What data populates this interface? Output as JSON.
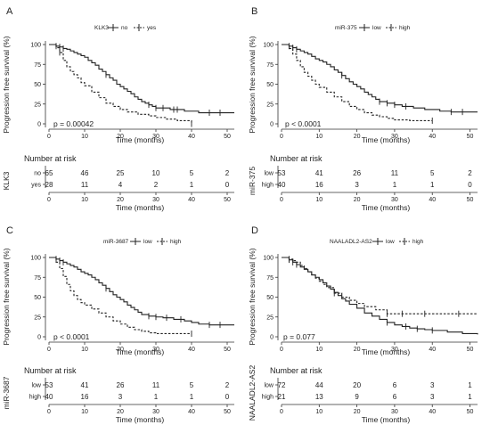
{
  "panels": [
    {
      "label": "A",
      "legend_title": "KLK3",
      "strata": [
        "no",
        "yes"
      ],
      "ylabel": "Progression free survival (%)",
      "xlabel": "Time (months)",
      "pvalue": "p = 0.00042",
      "risk_title": "Number at risk",
      "risk_ylabel": "KLK3",
      "risk_xlabel": "Time (months)"
    },
    {
      "label": "B",
      "legend_title": "miR-375",
      "strata": [
        "low",
        "high"
      ],
      "ylabel": "Progression free survival (%)",
      "xlabel": "Time (months)",
      "pvalue": "p < 0.0001",
      "risk_title": "Number at risk",
      "risk_ylabel": "miR-375",
      "risk_xlabel": "Time (months)"
    },
    {
      "label": "C",
      "legend_title": "miR-3687",
      "strata": [
        "low",
        "high"
      ],
      "ylabel": "Progression free survival (%)",
      "xlabel": "Time (months)",
      "pvalue": "p < 0.0001",
      "risk_title": "Number at risk",
      "risk_ylabel": "miR-3687",
      "risk_xlabel": "Time (months)"
    },
    {
      "label": "D",
      "legend_title": "NAALADL2-AS2",
      "strata": [
        "low",
        "high"
      ],
      "ylabel": "Progression free survival (%)",
      "xlabel": "Time (months)",
      "pvalue": "p = 0.077",
      "risk_title": "Number at risk",
      "risk_ylabel": "NAALADL2-AS2",
      "risk_xlabel": "Time (months)"
    }
  ],
  "chart_data": [
    {
      "type": "line",
      "subtype": "kaplan-meier",
      "title": "A",
      "legend_title": "KLK3",
      "xlabel": "Time (months)",
      "ylabel": "Progression free survival (%)",
      "xlim": [
        0,
        52
      ],
      "ylim": [
        0,
        100
      ],
      "xticks": [
        0,
        10,
        20,
        30,
        40,
        50
      ],
      "yticks": [
        0,
        25,
        50,
        75,
        100
      ],
      "pvalue": "p = 0.00042",
      "series": [
        {
          "name": "no",
          "style": "solid",
          "x": [
            0,
            2,
            3,
            4,
            5,
            6,
            7,
            8,
            9,
            10,
            11,
            12,
            13,
            14,
            15,
            16,
            17,
            18,
            19,
            20,
            21,
            22,
            23,
            24,
            25,
            26,
            27,
            28,
            29,
            30,
            32,
            34,
            36,
            38,
            40,
            42,
            45,
            52
          ],
          "y": [
            100,
            98,
            97,
            95,
            94,
            92,
            90,
            88,
            86,
            84,
            80,
            77,
            74,
            69,
            66,
            62,
            58,
            55,
            50,
            47,
            44,
            41,
            38,
            34,
            31,
            28,
            26,
            24,
            22,
            20,
            20,
            18,
            18,
            16,
            16,
            14,
            14,
            14
          ],
          "censor_x": [
            2,
            3,
            4,
            16,
            28,
            30,
            32,
            35,
            36,
            45,
            48
          ]
        },
        {
          "name": "yes",
          "style": "dashed",
          "x": [
            0,
            2,
            3,
            4,
            5,
            6,
            7,
            8,
            9,
            10,
            12,
            14,
            16,
            18,
            20,
            22,
            25,
            28,
            30,
            33,
            36,
            40
          ],
          "y": [
            100,
            96,
            90,
            80,
            72,
            66,
            62,
            58,
            52,
            48,
            40,
            33,
            26,
            22,
            18,
            15,
            12,
            10,
            8,
            6,
            4,
            0
          ],
          "censor_x": [
            3,
            40
          ]
        }
      ],
      "risk_table": {
        "title": "Number at risk",
        "times": [
          0,
          10,
          20,
          30,
          40,
          50
        ],
        "rows": [
          {
            "label": "no",
            "values": [
              65,
              46,
              25,
              10,
              5,
              2
            ]
          },
          {
            "label": "yes",
            "values": [
              28,
              11,
              4,
              2,
              1,
              0
            ]
          }
        ]
      }
    },
    {
      "type": "line",
      "subtype": "kaplan-meier",
      "title": "B",
      "legend_title": "miR-375",
      "xlabel": "Time (months)",
      "ylabel": "Progression free survival (%)",
      "xlim": [
        0,
        52
      ],
      "ylim": [
        0,
        100
      ],
      "xticks": [
        0,
        10,
        20,
        30,
        40,
        50
      ],
      "yticks": [
        0,
        25,
        50,
        75,
        100
      ],
      "pvalue": "p < 0.0001",
      "series": [
        {
          "name": "low",
          "style": "solid",
          "x": [
            0,
            2,
            3,
            4,
            5,
            6,
            7,
            8,
            9,
            10,
            11,
            12,
            13,
            14,
            15,
            16,
            17,
            18,
            19,
            20,
            21,
            22,
            23,
            24,
            25,
            26,
            28,
            30,
            32,
            35,
            38,
            40,
            42,
            45,
            52
          ],
          "y": [
            100,
            98,
            96,
            94,
            92,
            90,
            88,
            85,
            82,
            80,
            78,
            75,
            72,
            68,
            65,
            61,
            57,
            53,
            50,
            47,
            44,
            40,
            37,
            34,
            31,
            28,
            26,
            24,
            22,
            20,
            18,
            18,
            16,
            15,
            15
          ],
          "censor_x": [
            2,
            3,
            4,
            16,
            26,
            28,
            30,
            33,
            45,
            48
          ]
        },
        {
          "name": "high",
          "style": "dashed",
          "x": [
            0,
            2,
            3,
            4,
            5,
            6,
            7,
            8,
            9,
            10,
            12,
            14,
            16,
            18,
            20,
            22,
            24,
            26,
            28,
            30,
            34,
            40
          ],
          "y": [
            100,
            95,
            88,
            80,
            72,
            65,
            60,
            55,
            50,
            46,
            40,
            34,
            28,
            22,
            18,
            14,
            11,
            9,
            7,
            5,
            4,
            4
          ],
          "censor_x": [
            40
          ]
        }
      ],
      "risk_table": {
        "title": "Number at risk",
        "times": [
          0,
          10,
          20,
          30,
          40,
          50
        ],
        "rows": [
          {
            "label": "low",
            "values": [
              53,
              41,
              26,
              11,
              5,
              2
            ]
          },
          {
            "label": "high",
            "values": [
              40,
              16,
              3,
              1,
              1,
              0
            ]
          }
        ]
      }
    },
    {
      "type": "line",
      "subtype": "kaplan-meier",
      "title": "C",
      "legend_title": "miR-3687",
      "xlabel": "Time (months)",
      "ylabel": "Progression free survival (%)",
      "xlim": [
        0,
        52
      ],
      "ylim": [
        0,
        100
      ],
      "xticks": [
        0,
        10,
        20,
        30,
        40,
        50
      ],
      "yticks": [
        0,
        25,
        50,
        75,
        100
      ],
      "pvalue": "p < 0.0001",
      "series": [
        {
          "name": "low",
          "style": "solid",
          "x": [
            0,
            2,
            3,
            4,
            5,
            6,
            7,
            8,
            9,
            10,
            11,
            12,
            13,
            14,
            15,
            16,
            17,
            18,
            19,
            20,
            21,
            22,
            23,
            24,
            25,
            26,
            28,
            30,
            32,
            35,
            38,
            40,
            42,
            45,
            52
          ],
          "y": [
            100,
            98,
            96,
            94,
            92,
            90,
            88,
            85,
            82,
            80,
            78,
            75,
            72,
            68,
            65,
            61,
            57,
            53,
            50,
            47,
            44,
            40,
            37,
            34,
            31,
            28,
            26,
            25,
            24,
            22,
            20,
            18,
            16,
            15,
            15
          ],
          "censor_x": [
            2,
            3,
            4,
            16,
            28,
            30,
            33,
            37,
            45,
            48
          ]
        },
        {
          "name": "high",
          "style": "dashed",
          "x": [
            0,
            2,
            3,
            4,
            5,
            6,
            7,
            8,
            9,
            10,
            12,
            14,
            16,
            18,
            20,
            22,
            24,
            26,
            28,
            30,
            34,
            40
          ],
          "y": [
            100,
            94,
            86,
            76,
            66,
            58,
            52,
            47,
            43,
            40,
            35,
            30,
            25,
            20,
            16,
            12,
            9,
            7,
            5,
            4,
            4,
            4
          ],
          "censor_x": [
            40
          ]
        }
      ],
      "risk_table": {
        "title": "Number at risk",
        "times": [
          0,
          10,
          20,
          30,
          40,
          50
        ],
        "rows": [
          {
            "label": "low",
            "values": [
              53,
              41,
              26,
              11,
              5,
              2
            ]
          },
          {
            "label": "high",
            "values": [
              40,
              16,
              3,
              1,
              1,
              0
            ]
          }
        ]
      }
    },
    {
      "type": "line",
      "subtype": "kaplan-meier",
      "title": "D",
      "legend_title": "NAALADL2-AS2",
      "xlabel": "Time (months)",
      "ylabel": "Progression free survival (%)",
      "xlim": [
        0,
        52
      ],
      "ylim": [
        0,
        100
      ],
      "xticks": [
        0,
        10,
        20,
        30,
        40,
        50
      ],
      "yticks": [
        0,
        25,
        50,
        75,
        100
      ],
      "pvalue": "p = 0.077",
      "series": [
        {
          "name": "low",
          "style": "solid",
          "x": [
            0,
            2,
            3,
            4,
            5,
            6,
            7,
            8,
            9,
            10,
            11,
            12,
            13,
            14,
            15,
            16,
            17,
            18,
            20,
            22,
            24,
            26,
            28,
            30,
            32,
            34,
            36,
            38,
            40,
            44,
            48,
            52
          ],
          "y": [
            100,
            97,
            94,
            91,
            88,
            85,
            82,
            78,
            75,
            72,
            68,
            64,
            60,
            56,
            52,
            48,
            45,
            41,
            36,
            30,
            26,
            22,
            18,
            15,
            13,
            11,
            10,
            9,
            8,
            6,
            4,
            3
          ],
          "censor_x": [
            2,
            3,
            4,
            28,
            33,
            36,
            40
          ]
        },
        {
          "name": "high",
          "style": "dashed",
          "x": [
            0,
            2,
            3,
            4,
            5,
            6,
            7,
            8,
            9,
            10,
            11,
            12,
            14,
            16,
            18,
            20,
            22,
            25,
            28,
            52
          ],
          "y": [
            100,
            98,
            96,
            94,
            90,
            86,
            82,
            78,
            74,
            70,
            66,
            62,
            55,
            50,
            46,
            42,
            38,
            34,
            29,
            29
          ],
          "censor_x": [
            2,
            14,
            28,
            32,
            38,
            47
          ]
        }
      ],
      "risk_table": {
        "title": "Number at risk",
        "times": [
          0,
          10,
          20,
          30,
          40,
          50
        ],
        "rows": [
          {
            "label": "low",
            "values": [
              72,
              44,
              20,
              6,
              3,
              1
            ]
          },
          {
            "label": "high",
            "values": [
              21,
              13,
              9,
              6,
              3,
              1
            ]
          }
        ]
      }
    }
  ]
}
